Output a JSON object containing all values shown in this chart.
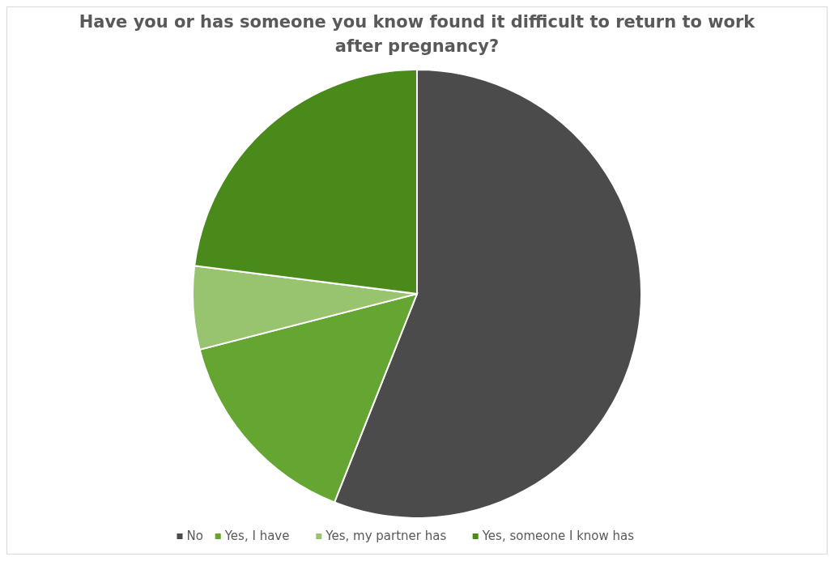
{
  "chart_data": {
    "type": "pie",
    "title": "Have you or has someone you know found it difficult to return to work after pregnancy?",
    "categories": [
      "No",
      "Yes, I have",
      "Yes, my partner has",
      "Yes, someone I know has"
    ],
    "values": [
      56,
      15,
      6,
      23
    ],
    "colors": [
      "#4b4b4b",
      "#65a532",
      "#98c470",
      "#4a8a1b"
    ],
    "legend": "bottom"
  }
}
